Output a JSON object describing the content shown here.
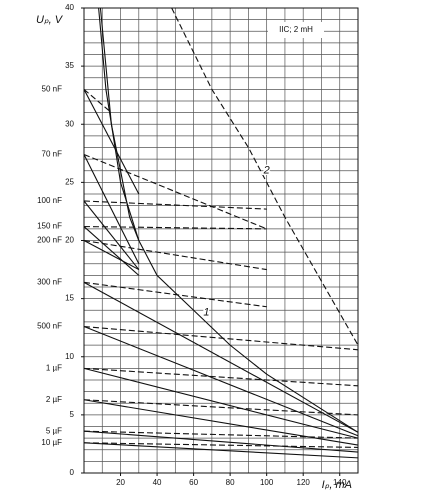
{
  "chart_data": {
    "type": "line",
    "y_label": "Uₚ, V",
    "x_label": "Iₚ, mA",
    "note": "IIC; 2 mH",
    "xlim": [
      0,
      150
    ],
    "ylim": [
      0,
      40
    ],
    "xticks": [
      20,
      40,
      60,
      80,
      100,
      120,
      140
    ],
    "yticks": [
      0,
      5,
      10,
      15,
      20,
      25,
      30,
      35,
      40
    ],
    "x_grid": [
      0,
      10,
      20,
      30,
      40,
      50,
      60,
      70,
      80,
      90,
      100,
      110,
      120,
      130,
      140,
      150
    ],
    "y_grid": [
      0,
      1,
      2,
      3,
      4,
      5,
      6,
      7,
      8,
      9,
      10,
      11,
      12,
      13,
      14,
      15,
      16,
      17,
      18,
      19,
      20,
      21,
      22,
      23,
      24,
      25,
      26,
      27,
      28,
      29,
      30,
      31,
      32,
      33,
      34,
      35,
      36,
      37,
      38,
      39,
      40
    ],
    "grid": true,
    "capacitor_labels": [
      {
        "text": "50 nF",
        "y": 33
      },
      {
        "text": "70 nF",
        "y": 27.4
      },
      {
        "text": "100 nF",
        "y": 23.4
      },
      {
        "text": "150 nF",
        "y": 21.2
      },
      {
        "text": "200 nF",
        "y": 20
      },
      {
        "text": "300 nF",
        "y": 16.4
      },
      {
        "text": "500 nF",
        "y": 12.6
      },
      {
        "text": "1 µF",
        "y": 9
      },
      {
        "text": "2 µF",
        "y": 6.3
      },
      {
        "text": "5 µF",
        "y": 3.6
      },
      {
        "text": "10 µF",
        "y": 2.6
      }
    ],
    "curve_labels": [
      {
        "text": "1",
        "x": 67,
        "y": 13.8
      },
      {
        "text": "2",
        "x": 100,
        "y": 26
      }
    ],
    "series": [
      {
        "color": "#111",
        "dashed": false,
        "x": [
          0,
          30
        ],
        "values": [
          33,
          24
        ]
      },
      {
        "color": "#111",
        "dashed": true,
        "x": [
          0,
          15
        ],
        "values": [
          33,
          31
        ]
      },
      {
        "color": "#111",
        "dashed": false,
        "x": [
          0,
          30
        ],
        "values": [
          27.4,
          18
        ]
      },
      {
        "color": "#111",
        "dashed": true,
        "x": [
          0,
          100
        ],
        "values": [
          27.4,
          21
        ]
      },
      {
        "color": "#111",
        "dashed": false,
        "x": [
          0,
          30
        ],
        "values": [
          23.4,
          17.5
        ]
      },
      {
        "color": "#111",
        "dashed": true,
        "x": [
          0,
          100
        ],
        "values": [
          23.4,
          22.7
        ]
      },
      {
        "color": "#111",
        "dashed": false,
        "x": [
          0,
          30
        ],
        "values": [
          21.2,
          17
        ]
      },
      {
        "color": "#111",
        "dashed": true,
        "x": [
          0,
          100
        ],
        "values": [
          21.2,
          21
        ]
      },
      {
        "color": "#111",
        "dashed": false,
        "x": [
          0,
          30
        ],
        "values": [
          20,
          17.5
        ]
      },
      {
        "color": "#111",
        "dashed": true,
        "x": [
          0,
          100
        ],
        "values": [
          20,
          17.5
        ]
      },
      {
        "color": "#111",
        "dashed": false,
        "x": [
          0,
          150
        ],
        "values": [
          16.4,
          3.5
        ]
      },
      {
        "color": "#111",
        "dashed": true,
        "x": [
          0,
          100
        ],
        "values": [
          16.4,
          14.3
        ]
      },
      {
        "color": "#111",
        "dashed": false,
        "x": [
          0,
          150
        ],
        "values": [
          12.6,
          3.2
        ]
      },
      {
        "color": "#111",
        "dashed": true,
        "x": [
          0,
          150
        ],
        "values": [
          12.6,
          10.6
        ]
      },
      {
        "color": "#111",
        "dashed": false,
        "x": [
          0,
          150
        ],
        "values": [
          9,
          3
        ]
      },
      {
        "color": "#111",
        "dashed": true,
        "x": [
          0,
          150
        ],
        "values": [
          9,
          7.5
        ]
      },
      {
        "color": "#111",
        "dashed": false,
        "x": [
          0,
          150
        ],
        "values": [
          6.3,
          2.4
        ]
      },
      {
        "color": "#111",
        "dashed": true,
        "x": [
          0,
          150
        ],
        "values": [
          6.3,
          5
        ]
      },
      {
        "color": "#111",
        "dashed": false,
        "x": [
          0,
          150
        ],
        "values": [
          3.6,
          1.8
        ]
      },
      {
        "color": "#111",
        "dashed": true,
        "x": [
          0,
          150
        ],
        "values": [
          3.6,
          3
        ]
      },
      {
        "color": "#111",
        "dashed": false,
        "x": [
          0,
          150
        ],
        "values": [
          2.6,
          1.3
        ]
      },
      {
        "color": "#111",
        "dashed": true,
        "x": [
          0,
          150
        ],
        "values": [
          2.6,
          2.2
        ]
      },
      {
        "color": "#111",
        "dashed": false,
        "x": [
          8,
          12,
          20,
          30,
          40,
          60,
          80,
          100,
          120,
          150
        ],
        "values": [
          40,
          33,
          25,
          20,
          17,
          14,
          11,
          8.5,
          6.5,
          3.5
        ]
      },
      {
        "color": "#111",
        "dashed": false,
        "x": [
          9,
          15,
          25,
          30
        ],
        "values": [
          40,
          30,
          22,
          20
        ]
      },
      {
        "color": "#111",
        "dashed": true,
        "x": [
          48,
          70,
          90,
          110,
          130,
          150
        ],
        "values": [
          40,
          33,
          28,
          22,
          16.5,
          11
        ]
      }
    ]
  }
}
